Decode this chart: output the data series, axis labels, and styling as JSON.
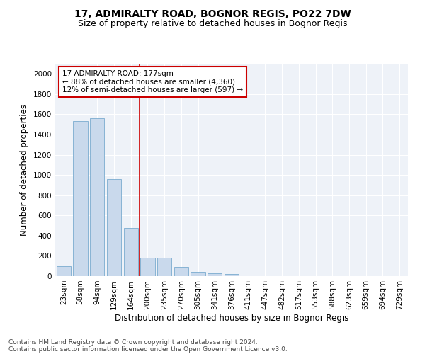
{
  "title1": "17, ADMIRALTY ROAD, BOGNOR REGIS, PO22 7DW",
  "title2": "Size of property relative to detached houses in Bognor Regis",
  "xlabel": "Distribution of detached houses by size in Bognor Regis",
  "ylabel": "Number of detached properties",
  "categories": [
    "23sqm",
    "58sqm",
    "94sqm",
    "129sqm",
    "164sqm",
    "200sqm",
    "235sqm",
    "270sqm",
    "305sqm",
    "341sqm",
    "376sqm",
    "411sqm",
    "447sqm",
    "482sqm",
    "517sqm",
    "553sqm",
    "588sqm",
    "623sqm",
    "659sqm",
    "694sqm",
    "729sqm"
  ],
  "values": [
    100,
    1530,
    1560,
    960,
    475,
    180,
    180,
    90,
    40,
    28,
    18,
    0,
    0,
    0,
    0,
    0,
    0,
    0,
    0,
    0,
    0
  ],
  "bar_color": "#c9d9ec",
  "bar_edge_color": "#7aabcf",
  "vline_x_index": 4.5,
  "annotation_line1": "17 ADMIRALTY ROAD: 177sqm",
  "annotation_line2": "← 88% of detached houses are smaller (4,360)",
  "annotation_line3": "12% of semi-detached houses are larger (597) →",
  "annotation_box_color": "#ffffff",
  "annotation_box_edge_color": "#cc0000",
  "vline_color": "#cc0000",
  "ylim": [
    0,
    2100
  ],
  "yticks": [
    0,
    200,
    400,
    600,
    800,
    1000,
    1200,
    1400,
    1600,
    1800,
    2000
  ],
  "background_color": "#eef2f8",
  "footer1": "Contains HM Land Registry data © Crown copyright and database right 2024.",
  "footer2": "Contains public sector information licensed under the Open Government Licence v3.0.",
  "title1_fontsize": 10,
  "title2_fontsize": 9,
  "xlabel_fontsize": 8.5,
  "ylabel_fontsize": 8.5,
  "tick_fontsize": 7.5,
  "annotation_fontsize": 7.5,
  "footer_fontsize": 6.5
}
